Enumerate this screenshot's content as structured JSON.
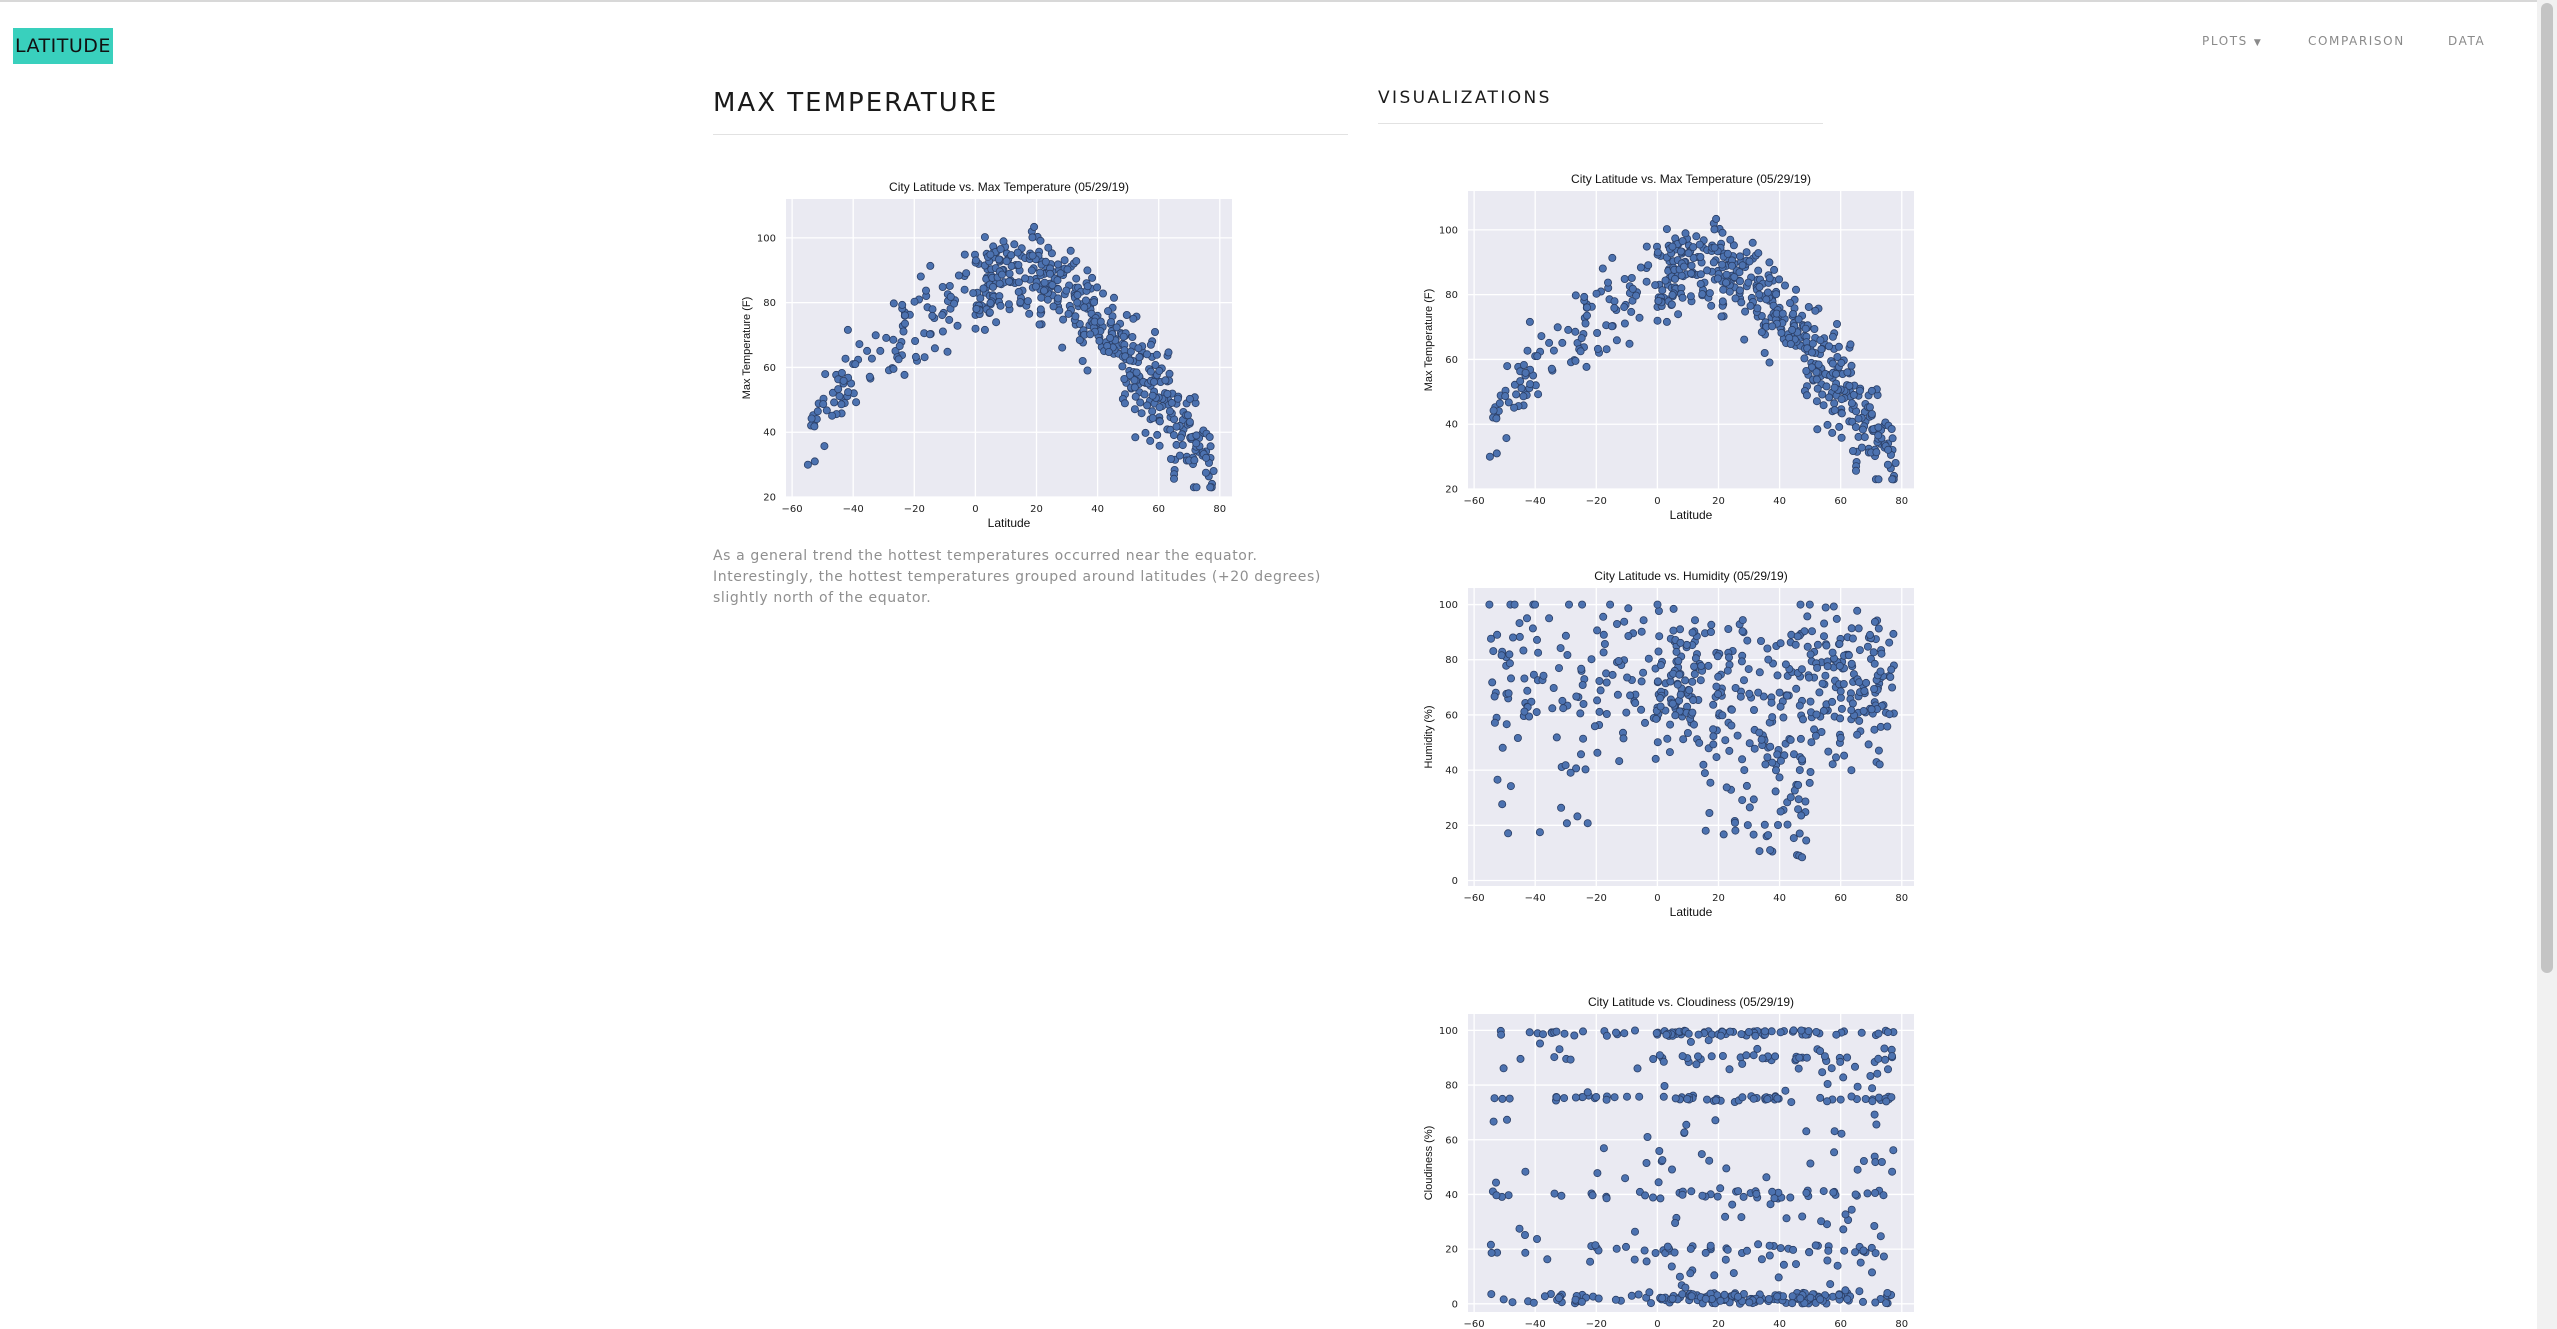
{
  "navbar": {
    "brand": "LATITUDE",
    "items": [
      {
        "label": "PLOTS",
        "dropdown": true
      },
      {
        "label": "COMPARISON",
        "dropdown": false
      },
      {
        "label": "DATA",
        "dropdown": false
      }
    ]
  },
  "main": {
    "title": "MAX TEMPERATURE",
    "description": "As a general trend the hottest temperatures occurred near the equator. Interestingly, the hottest temperatures grouped around latitudes (+20 degrees) slightly north of the equator."
  },
  "sidebar": {
    "title": "VISUALIZATIONS"
  },
  "colors": {
    "brand": "#39d0bd",
    "plot_background": "#eaeaf2",
    "marker": "#4c72b0"
  },
  "chart_data": [
    {
      "type": "scatter",
      "title": "City Latitude vs. Max Temperature (05/29/19)",
      "xlabel": "Latitude",
      "ylabel": "Max Temperature (F)",
      "xlim": [
        -62,
        84
      ],
      "ylim": [
        20,
        112
      ],
      "xticks": [
        "−60",
        "−40",
        "−20",
        "0",
        "20",
        "40",
        "60",
        "80"
      ],
      "xtick_values": [
        -60,
        -40,
        -20,
        0,
        20,
        40,
        60,
        80
      ],
      "yticks": [
        "20",
        "40",
        "60",
        "80",
        "100"
      ],
      "ytick_values": [
        20,
        40,
        60,
        80,
        100
      ],
      "grid": true,
      "trend": "arch peaking near +15 latitude (~90F), ~42F at -55, ~30F at +75",
      "n_points": 560
    },
    {
      "type": "scatter",
      "title": "City Latitude vs. Max Temperature (05/29/19)",
      "xlabel": "Latitude",
      "ylabel": "Max Temperature (F)",
      "xlim": [
        -62,
        84
      ],
      "ylim": [
        20,
        112
      ],
      "xticks": [
        "−60",
        "−40",
        "−20",
        "0",
        "20",
        "40",
        "60",
        "80"
      ],
      "xtick_values": [
        -60,
        -40,
        -20,
        0,
        20,
        40,
        60,
        80
      ],
      "yticks": [
        "20",
        "40",
        "60",
        "80",
        "100"
      ],
      "ytick_values": [
        20,
        40,
        60,
        80,
        100
      ],
      "grid": true,
      "trend": "arch peaking near +15 latitude (~90F), ~42F at -55, ~30F at +75",
      "n_points": 560
    },
    {
      "type": "scatter",
      "title": "City Latitude vs. Humidity (05/29/19)",
      "xlabel": "Latitude",
      "ylabel": "Humidity (%)",
      "xlim": [
        -62,
        84
      ],
      "ylim": [
        -2,
        106
      ],
      "xticks": [
        "−60",
        "−40",
        "−20",
        "0",
        "20",
        "40",
        "60",
        "80"
      ],
      "xtick_values": [
        -60,
        -40,
        -20,
        0,
        20,
        40,
        60,
        80
      ],
      "yticks": [
        "0",
        "20",
        "40",
        "60",
        "80",
        "100"
      ],
      "ytick_values": [
        0,
        20,
        40,
        60,
        80,
        100
      ],
      "grid": true,
      "trend": "mostly 50-100%, dense 60-90%, sparse low values around 20-50 latitude",
      "n_points": 560
    },
    {
      "type": "scatter",
      "title": "City Latitude vs. Cloudiness (05/29/19)",
      "xlabel": "",
      "ylabel": "Cloudiness (%)",
      "xlim": [
        -62,
        84
      ],
      "ylim": [
        -3,
        106
      ],
      "xticks": [
        "−60",
        "−40",
        "−20",
        "0",
        "20",
        "40",
        "60",
        "80"
      ],
      "xtick_values": [
        -60,
        -40,
        -20,
        0,
        20,
        40,
        60,
        80
      ],
      "yticks": [
        "0",
        "20",
        "40",
        "60",
        "80",
        "100"
      ],
      "ytick_values": [
        0,
        20,
        40,
        60,
        80,
        100
      ],
      "grid": true,
      "trend": "banded at 0, 20, 40, 75, 90 and 100 percent across all latitudes",
      "n_points": 560
    }
  ]
}
